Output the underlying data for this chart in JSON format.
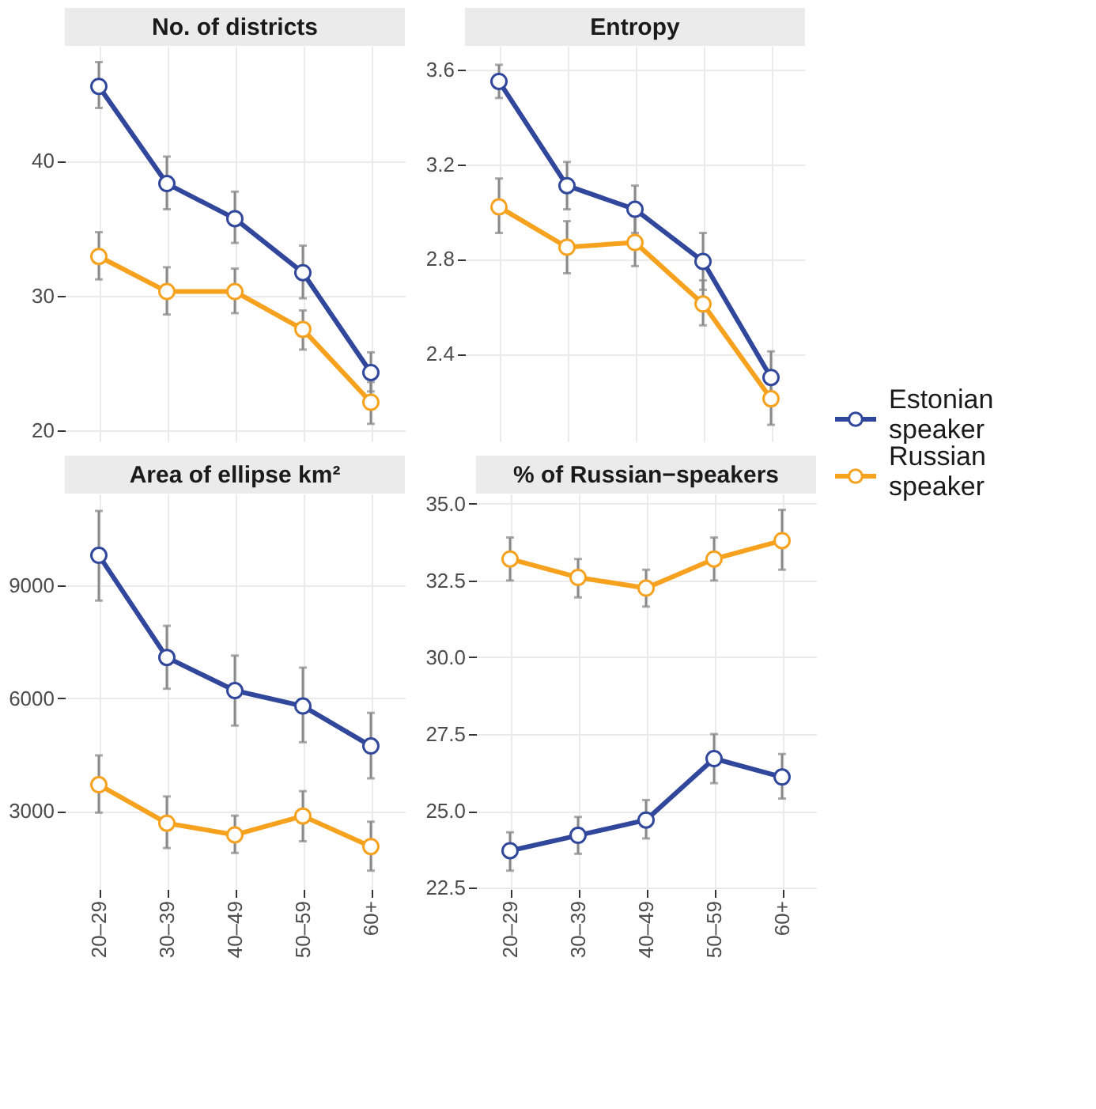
{
  "chart_data": [
    {
      "type": "line",
      "title": "No. of districts",
      "categories": [
        "20–29",
        "30–39",
        "40–49",
        "50–59",
        "60+"
      ],
      "ylim": [
        19.2,
        48.5
      ],
      "yticks": [
        20,
        30,
        40
      ],
      "grid": true,
      "tick_labels": "y",
      "marker": "circle",
      "legend": "right",
      "series": [
        {
          "name": "Estonian speaker",
          "color": "#30479b",
          "values": [
            45.5,
            38.3,
            35.7,
            31.7,
            24.3
          ],
          "errors": [
            [
              43.9,
              47.3
            ],
            [
              36.4,
              40.3
            ],
            [
              33.9,
              37.7
            ],
            [
              29.8,
              33.7
            ],
            [
              22.9,
              25.8
            ]
          ]
        },
        {
          "name": "Russian speaker",
          "color": "#f7a21f",
          "values": [
            32.9,
            30.3,
            30.3,
            27.5,
            22.1
          ],
          "errors": [
            [
              31.2,
              34.7
            ],
            [
              28.6,
              32.1
            ],
            [
              28.7,
              32.0
            ],
            [
              26.0,
              28.9
            ],
            [
              20.5,
              23.6
            ]
          ]
        }
      ]
    },
    {
      "type": "line",
      "title": "Entropy",
      "categories": [
        "20–29",
        "30–39",
        "40–49",
        "50–59",
        "60+"
      ],
      "ylim": [
        2.03,
        3.7
      ],
      "yticks": [
        2.4,
        2.8,
        3.2,
        3.6
      ],
      "grid": true,
      "tick_labels": "y",
      "marker": "circle",
      "series": [
        {
          "name": "Estonian speaker",
          "color": "#30479b",
          "values": [
            3.55,
            3.11,
            3.01,
            2.79,
            2.3
          ],
          "errors": [
            [
              3.48,
              3.62
            ],
            [
              3.01,
              3.21
            ],
            [
              2.91,
              3.11
            ],
            [
              2.67,
              2.91
            ],
            [
              2.19,
              2.41
            ]
          ]
        },
        {
          "name": "Russian speaker",
          "color": "#f7a21f",
          "values": [
            3.02,
            2.85,
            2.87,
            2.61,
            2.21
          ],
          "errors": [
            [
              2.91,
              3.14
            ],
            [
              2.74,
              2.96
            ],
            [
              2.77,
              2.98
            ],
            [
              2.52,
              2.71
            ],
            [
              2.1,
              2.32
            ]
          ]
        }
      ]
    },
    {
      "type": "line",
      "title": "Area of ellipse km²",
      "categories": [
        "20–29",
        "30–39",
        "40–49",
        "50–59",
        "60+"
      ],
      "ylim": [
        930,
        11430
      ],
      "yticks": [
        3000,
        6000,
        9000
      ],
      "grid": true,
      "marker": "circle",
      "series": [
        {
          "name": "Estonian speaker",
          "color": "#30479b",
          "values": [
            9790,
            7080,
            6200,
            5790,
            4730
          ],
          "errors": [
            [
              8590,
              10970
            ],
            [
              6250,
              7920
            ],
            [
              5270,
              7130
            ],
            [
              4830,
              6810
            ],
            [
              3870,
              5610
            ]
          ]
        },
        {
          "name": "Russian speaker",
          "color": "#f7a21f",
          "values": [
            3700,
            2680,
            2370,
            2870,
            2060
          ],
          "errors": [
            [
              2960,
              4480
            ],
            [
              2020,
              3390
            ],
            [
              1890,
              2880
            ],
            [
              2200,
              3530
            ],
            [
              1420,
              2720
            ]
          ]
        }
      ]
    },
    {
      "type": "line",
      "title": "% of Russian−speakers",
      "categories": [
        "20–29",
        "30–39",
        "40–49",
        "50–59",
        "60+"
      ],
      "ylim": [
        22.45,
        35.33
      ],
      "yticks": [
        {
          "value": 22.5,
          "label": "22.5"
        },
        {
          "value": 25,
          "label": "25.0"
        },
        {
          "value": 27.5,
          "label": "27.5"
        },
        {
          "value": 30,
          "label": "30.0"
        },
        {
          "value": 32.5,
          "label": "32.5"
        },
        {
          "value": 35,
          "label": "35.0"
        }
      ],
      "grid": true,
      "marker": "circle",
      "series": [
        {
          "name": "Estonian speaker",
          "color": "#30479b",
          "values": [
            23.7,
            24.2,
            24.7,
            26.7,
            26.1
          ],
          "errors": [
            [
              23.05,
              24.3
            ],
            [
              23.6,
              24.8
            ],
            [
              24.1,
              25.35
            ],
            [
              25.9,
              27.5
            ],
            [
              25.4,
              26.85
            ]
          ]
        },
        {
          "name": "Russian speaker",
          "color": "#f7a21f",
          "values": [
            33.2,
            32.6,
            32.25,
            33.2,
            33.8
          ],
          "errors": [
            [
              32.5,
              33.9
            ],
            [
              31.95,
              33.2
            ],
            [
              31.65,
              32.85
            ],
            [
              32.5,
              33.9
            ],
            [
              32.85,
              34.8
            ]
          ]
        }
      ]
    }
  ]
}
